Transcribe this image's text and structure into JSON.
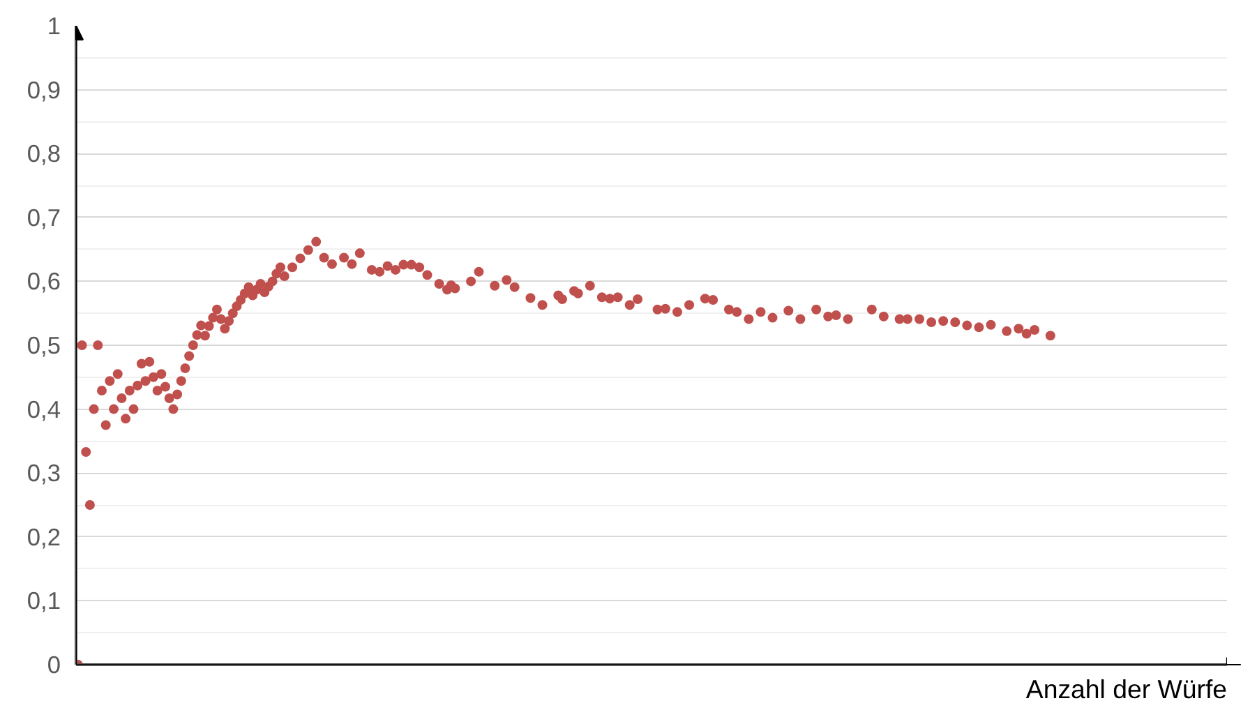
{
  "chart_data": {
    "type": "scatter",
    "xlabel": "Anzahl der Würfe",
    "categories": [
      null,
      null,
      null,
      null,
      null,
      null,
      null,
      null,
      null,
      null,
      null,
      null,
      null,
      null,
      null,
      null,
      null,
      null,
      null,
      null,
      null,
      null,
      null,
      null,
      null,
      null,
      null,
      null,
      null,
      null,
      null,
      null,
      null,
      null,
      null,
      null,
      null,
      null,
      null,
      null,
      null,
      null,
      null,
      null,
      null,
      null,
      null,
      null,
      null,
      null,
      null,
      null,
      null,
      null,
      null,
      null,
      null,
      null,
      null,
      null,
      null,
      null,
      null,
      null,
      null,
      null,
      null,
      null,
      null,
      null,
      null,
      null,
      null,
      null,
      null,
      null,
      null,
      null,
      null,
      null,
      null,
      null,
      null,
      null,
      null,
      null,
      null,
      null,
      null,
      null,
      null,
      null,
      null,
      null,
      null,
      null,
      null,
      null,
      null,
      null,
      null,
      null,
      null,
      null,
      null,
      null,
      null,
      null,
      null,
      null,
      null,
      null,
      null,
      null,
      null,
      null,
      null,
      null,
      null,
      null,
      null,
      null,
      null,
      null,
      null,
      null,
      null,
      null,
      null,
      null,
      null,
      null,
      null,
      null,
      null,
      null,
      null,
      null,
      null,
      null,
      null,
      null,
      null,
      null,
      null,
      null,
      null,
      null,
      null,
      null,
      null,
      null,
      null,
      null,
      null,
      null,
      null,
      null,
      null,
      null,
      null,
      null,
      null,
      null,
      null,
      null,
      null,
      null,
      null,
      null,
      null,
      null,
      null,
      null,
      null,
      null,
      null,
      null,
      null,
      null,
      null,
      null,
      null,
      null,
      null,
      null,
      null,
      null,
      null,
      null,
      null,
      null,
      null,
      null,
      null,
      null,
      null,
      null,
      null,
      null,
      null,
      null,
      null,
      null,
      null,
      null,
      null,
      null,
      null,
      null,
      null,
      null,
      null,
      null,
      null,
      null,
      null,
      null,
      null,
      null,
      null,
      null,
      null,
      null,
      null,
      null,
      null,
      null,
      null,
      null,
      null,
      null,
      null,
      null,
      null,
      null,
      null,
      null,
      null,
      null,
      null,
      null,
      null,
      null,
      null,
      null,
      null,
      null,
      null,
      null,
      null,
      null,
      null,
      null,
      null,
      null,
      null,
      null,
      null,
      null,
      null,
      null,
      null,
      null,
      null,
      null,
      null,
      null,
      null,
      null,
      null,
      null,
      null,
      null,
      null,
      null,
      null,
      null,
      null,
      null,
      null,
      null,
      null,
      null,
      null,
      null,
      null,
      null,
      null,
      null
    ],
    "values": [
      0,
      0.5,
      0.333,
      0.25,
      0.4,
      0.5,
      0.429,
      0.375,
      0.444,
      0.4,
      0.455,
      0.417,
      0.385,
      0.429,
      0.4,
      0.437,
      0.471,
      0.444,
      0.474,
      0.45,
      0.429,
      0.455,
      0.435,
      0.417,
      0.4,
      0.423,
      0.444,
      0.464,
      0.483,
      0.5,
      0.516,
      0.531,
      0.515,
      0.53,
      0.543,
      0.556,
      0.541,
      0.526,
      0.538,
      0.55,
      0.561,
      0.571,
      0.581,
      0.591,
      0.578,
      0.587,
      0.596,
      0.583,
      0.592,
      0.6,
      0.612,
      0.622,
      0.608,
      null,
      0.622,
      null,
      0.636,
      null,
      0.649,
      null,
      0.662,
      null,
      0.637,
      null,
      0.627,
      null,
      null,
      0.637,
      null,
      0.627,
      null,
      0.644,
      null,
      null,
      0.618,
      null,
      0.615,
      null,
      0.624,
      null,
      0.618,
      null,
      0.626,
      null,
      0.626,
      null,
      0.622,
      null,
      0.61,
      null,
      null,
      0.596,
      null,
      0.587,
      0.594,
      0.589,
      null,
      null,
      null,
      0.6,
      null,
      0.615,
      null,
      null,
      null,
      0.593,
      null,
      null,
      0.602,
      null,
      0.591,
      null,
      null,
      null,
      0.574,
      null,
      null,
      0.563,
      null,
      null,
      null,
      0.578,
      0.572,
      null,
      null,
      0.585,
      0.581,
      null,
      null,
      0.593,
      null,
      null,
      0.575,
      null,
      0.573,
      null,
      0.575,
      null,
      null,
      0.563,
      null,
      0.572,
      null,
      null,
      null,
      null,
      0.556,
      null,
      0.557,
      null,
      null,
      0.552,
      null,
      null,
      0.563,
      null,
      null,
      null,
      0.573,
      null,
      0.571,
      null,
      null,
      null,
      0.556,
      null,
      0.552,
      null,
      null,
      0.541,
      null,
      null,
      0.552,
      null,
      null,
      0.543,
      null,
      null,
      null,
      0.554,
      null,
      null,
      0.541,
      null,
      null,
      null,
      0.556,
      null,
      null,
      0.545,
      null,
      0.547,
      null,
      null,
      0.541,
      null,
      null,
      null,
      null,
      null,
      0.556,
      null,
      null,
      0.545,
      null,
      null,
      null,
      0.541,
      null,
      0.541,
      null,
      null,
      0.541,
      null,
      null,
      0.536,
      null,
      null,
      0.538,
      null,
      null,
      0.536,
      null,
      null,
      0.531,
      null,
      null,
      0.528,
      null,
      null,
      0.532,
      null,
      null,
      null,
      0.522,
      null,
      null,
      0.526,
      null,
      0.518,
      null,
      0.524,
      null,
      null,
      null,
      0.515,
      null,
      null,
      null,
      null,
      null,
      null,
      null,
      null,
      null,
      null,
      null,
      null,
      null,
      null,
      null,
      null,
      null,
      null,
      null,
      null,
      null,
      null,
      null,
      null,
      null,
      null,
      null,
      null,
      null,
      null,
      null,
      null,
      null,
      null,
      null,
      null,
      null,
      null,
      null,
      null,
      null,
      null,
      null,
      null
    ],
    "color": "#c0504d",
    "marker": "circle",
    "ylim": [
      0,
      1
    ],
    "yticks": [
      0,
      {
        "value": 0.1,
        "label": "0,1"
      },
      {
        "value": 0.2,
        "label": "0,2"
      },
      {
        "value": 0.3,
        "label": "0,3"
      },
      {
        "value": 0.4,
        "label": "0,4"
      },
      {
        "value": 0.5,
        "label": "0,5"
      },
      {
        "value": 0.6,
        "label": "0,6"
      },
      {
        "value": 0.7,
        "label": "0,7"
      },
      {
        "value": 0.8,
        "label": "0,8"
      },
      {
        "value": 0.9,
        "label": "0,9"
      },
      1
    ],
    "grid": "y",
    "tick_labels": "y"
  }
}
